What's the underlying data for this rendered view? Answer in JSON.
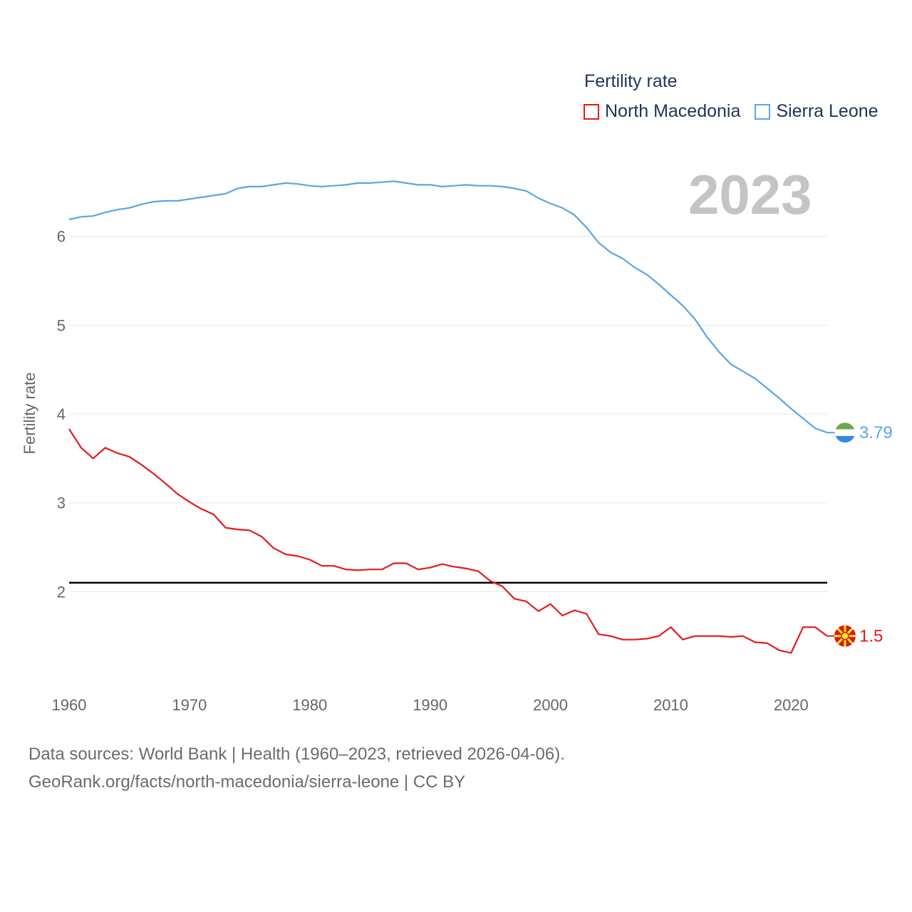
{
  "legend": {
    "title": "Fertility rate",
    "items": [
      {
        "label": "North Macedonia",
        "color": "#e41a1c"
      },
      {
        "label": "Sierra Leone",
        "color": "#5aa5e6"
      }
    ]
  },
  "year_label": "2023",
  "footer": {
    "line1": "Data sources: World Bank | Health (1960–2023, retrieved 2026-04-06).",
    "line2": "GeoRank.org/facts/north-macedonia/sierra-leone | CC BY"
  },
  "chart_data": {
    "type": "line",
    "title": "",
    "xlabel": "",
    "ylabel": "Fertility rate",
    "xlim": [
      1960,
      2023
    ],
    "ylim": [
      1.0,
      6.8
    ],
    "xticks": [
      1960,
      1970,
      1980,
      1990,
      2000,
      2010,
      2020
    ],
    "yticks": [
      2,
      3,
      4,
      5,
      6
    ],
    "reference_line": {
      "y": 2.1,
      "color": "#000000"
    },
    "x": [
      1960,
      1961,
      1962,
      1963,
      1964,
      1965,
      1966,
      1967,
      1968,
      1969,
      1970,
      1971,
      1972,
      1973,
      1974,
      1975,
      1976,
      1977,
      1978,
      1979,
      1980,
      1981,
      1982,
      1983,
      1984,
      1985,
      1986,
      1987,
      1988,
      1989,
      1990,
      1991,
      1992,
      1993,
      1994,
      1995,
      1996,
      1997,
      1998,
      1999,
      2000,
      2001,
      2002,
      2003,
      2004,
      2005,
      2006,
      2007,
      2008,
      2009,
      2010,
      2011,
      2012,
      2013,
      2014,
      2015,
      2016,
      2017,
      2018,
      2019,
      2020,
      2021,
      2022,
      2023
    ],
    "series": [
      {
        "name": "North Macedonia",
        "color": "#e41a1c",
        "end_label": "1.5",
        "values": [
          3.83,
          3.62,
          3.5,
          3.62,
          3.56,
          3.52,
          3.43,
          3.33,
          3.22,
          3.1,
          3.01,
          2.93,
          2.87,
          2.72,
          2.7,
          2.69,
          2.62,
          2.49,
          2.42,
          2.4,
          2.36,
          2.29,
          2.29,
          2.25,
          2.24,
          2.25,
          2.25,
          2.32,
          2.32,
          2.25,
          2.27,
          2.31,
          2.28,
          2.26,
          2.23,
          2.12,
          2.06,
          1.92,
          1.89,
          1.78,
          1.86,
          1.73,
          1.79,
          1.75,
          1.52,
          1.5,
          1.46,
          1.46,
          1.47,
          1.5,
          1.6,
          1.46,
          1.5,
          1.5,
          1.5,
          1.49,
          1.5,
          1.43,
          1.42,
          1.34,
          1.31,
          1.6,
          1.6,
          1.5
        ]
      },
      {
        "name": "Sierra Leone",
        "color": "#5aa5e6",
        "end_label": "3.79",
        "values": [
          6.19,
          6.22,
          6.23,
          6.27,
          6.3,
          6.32,
          6.36,
          6.39,
          6.4,
          6.4,
          6.42,
          6.44,
          6.46,
          6.48,
          6.54,
          6.56,
          6.56,
          6.58,
          6.6,
          6.59,
          6.57,
          6.56,
          6.57,
          6.58,
          6.6,
          6.6,
          6.61,
          6.62,
          6.6,
          6.58,
          6.58,
          6.56,
          6.57,
          6.58,
          6.57,
          6.57,
          6.56,
          6.54,
          6.51,
          6.43,
          6.37,
          6.32,
          6.24,
          6.1,
          5.93,
          5.82,
          5.75,
          5.65,
          5.57,
          5.46,
          5.34,
          5.22,
          5.07,
          4.87,
          4.7,
          4.56,
          4.48,
          4.4,
          4.29,
          4.18,
          4.06,
          3.95,
          3.84,
          3.79
        ]
      }
    ]
  }
}
